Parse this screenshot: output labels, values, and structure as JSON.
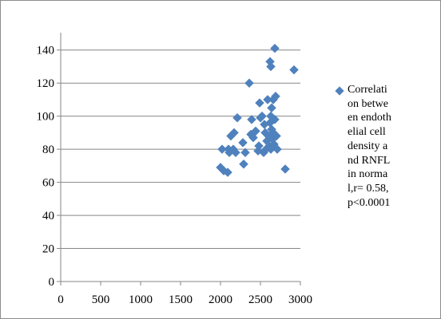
{
  "chart_data": {
    "type": "scatter",
    "title": "",
    "xlabel": "",
    "ylabel": "",
    "xlim": [
      0,
      3000
    ],
    "ylim": [
      0,
      150
    ],
    "xticks": [
      0,
      500,
      1000,
      1500,
      2000,
      2500,
      3000
    ],
    "yticks": [
      0,
      20,
      40,
      60,
      80,
      100,
      120,
      140
    ],
    "grid": "horizontal",
    "legend_position": "right",
    "series": [
      {
        "name": "Correlation between endothelial cell density and RNFL in normal,r= 0.58,p<0.0001",
        "color": "#4f81bd",
        "marker": "diamond",
        "points": [
          [
            2000,
            69
          ],
          [
            2040,
            67
          ],
          [
            2090,
            66
          ],
          [
            2020,
            80
          ],
          [
            2100,
            80
          ],
          [
            2160,
            80
          ],
          [
            2110,
            78
          ],
          [
            2190,
            78
          ],
          [
            2130,
            88
          ],
          [
            2170,
            90
          ],
          [
            2210,
            99
          ],
          [
            2280,
            84
          ],
          [
            2290,
            71
          ],
          [
            2310,
            78
          ],
          [
            2380,
            89
          ],
          [
            2390,
            98
          ],
          [
            2410,
            87
          ],
          [
            2440,
            91
          ],
          [
            2470,
            79
          ],
          [
            2480,
            82
          ],
          [
            2500,
            99
          ],
          [
            2490,
            108
          ],
          [
            2520,
            100
          ],
          [
            2540,
            78
          ],
          [
            2550,
            95
          ],
          [
            2560,
            90
          ],
          [
            2570,
            80
          ],
          [
            2580,
            85
          ],
          [
            2590,
            110
          ],
          [
            2600,
            88
          ],
          [
            2610,
            82
          ],
          [
            2620,
            96
          ],
          [
            2630,
            80
          ],
          [
            2630,
            100
          ],
          [
            2640,
            92
          ],
          [
            2640,
            105
          ],
          [
            2650,
            86
          ],
          [
            2660,
            90
          ],
          [
            2670,
            83
          ],
          [
            2660,
            110
          ],
          [
            2680,
            98
          ],
          [
            2690,
            112
          ],
          [
            2700,
            88
          ],
          [
            2710,
            80
          ],
          [
            2620,
            133
          ],
          [
            2630,
            130
          ],
          [
            2680,
            141
          ],
          [
            2360,
            120
          ],
          [
            2920,
            128
          ],
          [
            2810,
            68
          ]
        ]
      }
    ]
  },
  "legend": {
    "text": "Correlation between endothelial cell density and RNFL in normal,r= 0.58,p<0.0001"
  }
}
